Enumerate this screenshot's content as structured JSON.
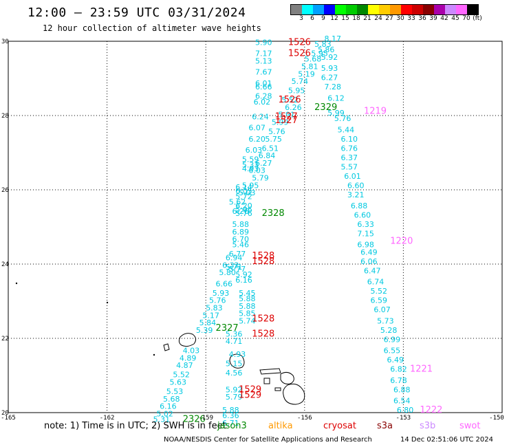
{
  "header": {
    "title": "12:00 — 23:59 UTC 03/31/2024",
    "subtitle": "12 hour collection of altimeter wave heights"
  },
  "colorbar": {
    "colors": [
      "#808080",
      "#00ffff",
      "#00a0ff",
      "#0000ff",
      "#00ff00",
      "#00cc00",
      "#008800",
      "#ffff00",
      "#ffcc00",
      "#ff9900",
      "#ff0000",
      "#cc0000",
      "#880000",
      "#aa00aa",
      "#cc88ff",
      "#ff66ff",
      "#000000"
    ],
    "labels": [
      "3",
      "6",
      "9",
      "12",
      "15",
      "18",
      "21",
      "24",
      "27",
      "30",
      "33",
      "36",
      "39",
      "42",
      "45",
      "70",
      "(ft)"
    ]
  },
  "axes": {
    "x_ticks": [
      "-165",
      "-162",
      "-159",
      "-156",
      "-153",
      "-150"
    ],
    "y_ticks": [
      "30",
      "28",
      "26",
      "24",
      "22",
      "20"
    ]
  },
  "tracks": {
    "swh_color": "#00c8e0",
    "swh_values": [
      {
        "lon": -157.5,
        "lat": 29.9,
        "v": "5.90"
      },
      {
        "lon": -157.5,
        "lat": 29.6,
        "v": "7.17"
      },
      {
        "lon": -157.5,
        "lat": 29.4,
        "v": "5.13"
      },
      {
        "lon": -157.5,
        "lat": 29.1,
        "v": "7.67"
      },
      {
        "lon": -157.5,
        "lat": 28.8,
        "v": "6.01"
      },
      {
        "lon": -157.5,
        "lat": 28.7,
        "v": "6.66"
      },
      {
        "lon": -157.5,
        "lat": 28.45,
        "v": "6.28"
      },
      {
        "lon": -157.55,
        "lat": 28.3,
        "v": "6.02"
      },
      {
        "lon": -157.6,
        "lat": 27.9,
        "v": "6.24"
      },
      {
        "lon": -157.7,
        "lat": 27.6,
        "v": "6.07"
      },
      {
        "lon": -157.7,
        "lat": 27.3,
        "v": "6.20"
      },
      {
        "lon": -157.8,
        "lat": 27.0,
        "v": "6.03"
      },
      {
        "lon": -157.9,
        "lat": 26.75,
        "v": "5.59"
      },
      {
        "lon": -157.9,
        "lat": 26.6,
        "v": "5.33"
      },
      {
        "lon": -157.9,
        "lat": 26.5,
        "v": "4.93"
      },
      {
        "lon": -158.1,
        "lat": 26.0,
        "v": "6.14"
      },
      {
        "lon": -158.1,
        "lat": 25.9,
        "v": "6.05"
      },
      {
        "lon": -158.1,
        "lat": 25.5,
        "v": "6.20"
      },
      {
        "lon": -158.1,
        "lat": 25.4,
        "v": "5.96"
      },
      {
        "lon": -158.1,
        "lat": 25.3,
        "v": "5.76"
      },
      {
        "lon": -158.2,
        "lat": 25.0,
        "v": "5.88"
      },
      {
        "lon": -158.2,
        "lat": 24.8,
        "v": "6.89"
      },
      {
        "lon": -158.2,
        "lat": 24.6,
        "v": "6.70"
      },
      {
        "lon": -158.2,
        "lat": 24.45,
        "v": "5.46"
      },
      {
        "lon": -158.3,
        "lat": 24.2,
        "v": "6.77"
      },
      {
        "lon": -158.4,
        "lat": 24.1,
        "v": "6.94"
      },
      {
        "lon": -158.5,
        "lat": 23.9,
        "v": "6.32"
      },
      {
        "lon": -158.6,
        "lat": 23.7,
        "v": "5.80"
      },
      {
        "lon": -158.7,
        "lat": 23.4,
        "v": "6.66"
      },
      {
        "lon": -158.8,
        "lat": 23.15,
        "v": "5.93"
      },
      {
        "lon": -158.9,
        "lat": 22.95,
        "v": "5.76"
      },
      {
        "lon": -159.0,
        "lat": 22.75,
        "v": "5.83"
      },
      {
        "lon": -159.1,
        "lat": 22.55,
        "v": "5.17"
      },
      {
        "lon": -159.2,
        "lat": 22.35,
        "v": "5.84"
      },
      {
        "lon": -159.3,
        "lat": 22.15,
        "v": "5.39"
      },
      {
        "lon": -159.7,
        "lat": 21.6,
        "v": "4.03"
      },
      {
        "lon": -159.8,
        "lat": 21.4,
        "v": "4.89"
      },
      {
        "lon": -159.9,
        "lat": 21.2,
        "v": "4.87"
      },
      {
        "lon": -160.0,
        "lat": 20.95,
        "v": "5.52"
      },
      {
        "lon": -160.1,
        "lat": 20.75,
        "v": "5.63"
      },
      {
        "lon": -160.2,
        "lat": 20.5,
        "v": "5.53"
      },
      {
        "lon": -160.3,
        "lat": 20.3,
        "v": "5.68"
      },
      {
        "lon": -160.4,
        "lat": 20.1,
        "v": "6.16"
      },
      {
        "lon": -160.5,
        "lat": 19.9,
        "v": "5.02"
      },
      {
        "lon": -160.6,
        "lat": 19.75,
        "v": "5.31"
      },
      {
        "lon": -158.4,
        "lat": 23.85,
        "v": "5.71"
      },
      {
        "lon": -158.3,
        "lat": 23.8,
        "v": "5.77"
      },
      {
        "lon": -158.1,
        "lat": 23.65,
        "v": "5.92"
      },
      {
        "lon": -158.1,
        "lat": 23.5,
        "v": "6.16"
      },
      {
        "lon": -158.0,
        "lat": 23.15,
        "v": "5.45"
      },
      {
        "lon": -158.0,
        "lat": 23.0,
        "v": "5.88"
      },
      {
        "lon": -158.0,
        "lat": 22.8,
        "v": "5.88"
      },
      {
        "lon": -158.0,
        "lat": 22.6,
        "v": "5.85"
      },
      {
        "lon": -158.0,
        "lat": 22.4,
        "v": "5.74"
      },
      {
        "lon": -158.4,
        "lat": 22.05,
        "v": "5.36"
      },
      {
        "lon": -158.4,
        "lat": 21.85,
        "v": "4.71"
      },
      {
        "lon": -158.3,
        "lat": 21.5,
        "v": "4.93"
      },
      {
        "lon": -158.4,
        "lat": 21.25,
        "v": "5.15"
      },
      {
        "lon": -158.4,
        "lat": 21.0,
        "v": "4.56"
      },
      {
        "lon": -158.4,
        "lat": 20.55,
        "v": "5.92"
      },
      {
        "lon": -158.4,
        "lat": 20.35,
        "v": "5.79"
      },
      {
        "lon": -158.5,
        "lat": 20.0,
        "v": "5.88"
      },
      {
        "lon": -158.5,
        "lat": 19.85,
        "v": "6.36"
      },
      {
        "lon": -158.5,
        "lat": 19.65,
        "v": "6.71"
      },
      {
        "lon": -155.4,
        "lat": 30.0,
        "v": "8.17"
      },
      {
        "lon": -155.7,
        "lat": 29.85,
        "v": "5.83"
      },
      {
        "lon": -155.6,
        "lat": 29.7,
        "v": "5.86"
      },
      {
        "lon": -155.8,
        "lat": 29.6,
        "v": "5.95"
      },
      {
        "lon": -155.5,
        "lat": 29.5,
        "v": "5.92"
      },
      {
        "lon": -156.0,
        "lat": 29.45,
        "v": "5.68"
      },
      {
        "lon": -156.1,
        "lat": 29.25,
        "v": "5.81"
      },
      {
        "lon": -155.5,
        "lat": 29.2,
        "v": "5.93"
      },
      {
        "lon": -156.2,
        "lat": 29.05,
        "v": "5.19"
      },
      {
        "lon": -155.5,
        "lat": 28.95,
        "v": "6.27"
      },
      {
        "lon": -156.4,
        "lat": 28.85,
        "v": "5.74"
      },
      {
        "lon": -155.4,
        "lat": 28.7,
        "v": "7.28"
      },
      {
        "lon": -156.5,
        "lat": 28.6,
        "v": "5.95"
      },
      {
        "lon": -155.3,
        "lat": 28.4,
        "v": "6.12"
      },
      {
        "lon": -156.7,
        "lat": 28.35,
        "v": "5.52"
      },
      {
        "lon": -156.6,
        "lat": 28.15,
        "v": "6.26"
      },
      {
        "lon": -156.8,
        "lat": 27.95,
        "v": "5.91"
      },
      {
        "lon": -155.3,
        "lat": 28.0,
        "v": "5.99"
      },
      {
        "lon": -157.0,
        "lat": 27.75,
        "v": "5.99"
      },
      {
        "lon": -155.1,
        "lat": 27.85,
        "v": "5.76"
      },
      {
        "lon": -157.1,
        "lat": 27.5,
        "v": "5.76"
      },
      {
        "lon": -155.0,
        "lat": 27.55,
        "v": "5.44"
      },
      {
        "lon": -157.2,
        "lat": 27.3,
        "v": "5.75"
      },
      {
        "lon": -154.9,
        "lat": 27.3,
        "v": "6.10"
      },
      {
        "lon": -157.3,
        "lat": 27.05,
        "v": "6.51"
      },
      {
        "lon": -154.9,
        "lat": 27.05,
        "v": "6.76"
      },
      {
        "lon": -157.4,
        "lat": 26.85,
        "v": "6.84"
      },
      {
        "lon": -154.9,
        "lat": 26.8,
        "v": "6.37"
      },
      {
        "lon": -157.5,
        "lat": 26.65,
        "v": "6.27"
      },
      {
        "lon": -154.9,
        "lat": 26.55,
        "v": "5.57"
      },
      {
        "lon": -157.7,
        "lat": 26.45,
        "v": "6.03"
      },
      {
        "lon": -154.8,
        "lat": 26.3,
        "v": "6.01"
      },
      {
        "lon": -157.6,
        "lat": 26.25,
        "v": "5.79"
      },
      {
        "lon": -154.7,
        "lat": 26.05,
        "v": "6.60"
      },
      {
        "lon": -157.9,
        "lat": 26.05,
        "v": "5.95"
      },
      {
        "lon": -154.7,
        "lat": 25.8,
        "v": "3.21"
      },
      {
        "lon": -158.0,
        "lat": 25.85,
        "v": "5.03"
      },
      {
        "lon": -154.6,
        "lat": 25.5,
        "v": "6.88"
      },
      {
        "lon": -158.1,
        "lat": 25.75,
        "v": "5.72"
      },
      {
        "lon": -154.5,
        "lat": 25.25,
        "v": "6.60"
      },
      {
        "lon": -158.3,
        "lat": 25.6,
        "v": "5.62"
      },
      {
        "lon": -154.4,
        "lat": 25.0,
        "v": "6.33"
      },
      {
        "lon": -158.2,
        "lat": 25.35,
        "v": "6.26"
      },
      {
        "lon": -154.4,
        "lat": 24.75,
        "v": "7.15"
      },
      {
        "lon": -154.4,
        "lat": 24.45,
        "v": "6.98"
      },
      {
        "lon": -154.3,
        "lat": 24.25,
        "v": "6.49"
      },
      {
        "lon": -154.3,
        "lat": 24.0,
        "v": "6.06"
      },
      {
        "lon": -154.2,
        "lat": 23.75,
        "v": "6.47"
      },
      {
        "lon": -154.1,
        "lat": 23.45,
        "v": "6.74"
      },
      {
        "lon": -154.0,
        "lat": 23.2,
        "v": "5.52"
      },
      {
        "lon": -154.0,
        "lat": 22.95,
        "v": "6.59"
      },
      {
        "lon": -153.9,
        "lat": 22.7,
        "v": "6.07"
      },
      {
        "lon": -153.8,
        "lat": 22.4,
        "v": "5.73"
      },
      {
        "lon": -153.7,
        "lat": 22.15,
        "v": "5.28"
      },
      {
        "lon": -153.6,
        "lat": 21.9,
        "v": "6.99"
      },
      {
        "lon": -153.6,
        "lat": 21.6,
        "v": "6.55"
      },
      {
        "lon": -153.5,
        "lat": 21.35,
        "v": "6.49"
      },
      {
        "lon": -153.4,
        "lat": 21.1,
        "v": "6.82"
      },
      {
        "lon": -153.4,
        "lat": 20.8,
        "v": "6.78"
      },
      {
        "lon": -153.3,
        "lat": 20.55,
        "v": "6.88"
      },
      {
        "lon": -153.3,
        "lat": 20.25,
        "v": "6.54"
      },
      {
        "lon": -153.2,
        "lat": 20.0,
        "v": "6.80"
      }
    ],
    "time_labels": [
      {
        "lon": -156.5,
        "lat": 29.9,
        "t": "1526",
        "color": "#dd0000"
      },
      {
        "lon": -156.5,
        "lat": 29.6,
        "t": "1526",
        "color": "#dd0000"
      },
      {
        "lon": -156.8,
        "lat": 28.35,
        "t": "1526",
        "color": "#dd0000"
      },
      {
        "lon": -156.9,
        "lat": 27.9,
        "t": "1527",
        "color": "#dd0000"
      },
      {
        "lon": -156.9,
        "lat": 27.8,
        "t": "1527",
        "color": "#dd0000"
      },
      {
        "lon": -155.7,
        "lat": 28.15,
        "t": "2329",
        "color": "#008800"
      },
      {
        "lon": -154.2,
        "lat": 28.05,
        "t": "1219",
        "color": "#ff66ff"
      },
      {
        "lon": -157.3,
        "lat": 25.3,
        "t": "2328",
        "color": "#008800"
      },
      {
        "lon": -153.4,
        "lat": 24.55,
        "t": "1220",
        "color": "#ff66ff"
      },
      {
        "lon": -157.6,
        "lat": 24.15,
        "t": "1528",
        "color": "#dd0000"
      },
      {
        "lon": -157.6,
        "lat": 24.0,
        "t": "1528",
        "color": "#dd0000"
      },
      {
        "lon": -157.6,
        "lat": 22.45,
        "t": "1528",
        "color": "#dd0000"
      },
      {
        "lon": -158.7,
        "lat": 22.2,
        "t": "2327",
        "color": "#008800"
      },
      {
        "lon": -157.6,
        "lat": 22.05,
        "t": "1528",
        "color": "#dd0000"
      },
      {
        "lon": -152.8,
        "lat": 21.1,
        "t": "1221",
        "color": "#ff66ff"
      },
      {
        "lon": -158.0,
        "lat": 20.55,
        "t": "1529",
        "color": "#dd0000"
      },
      {
        "lon": -158.0,
        "lat": 20.4,
        "t": "1529",
        "color": "#dd0000"
      },
      {
        "lon": -152.5,
        "lat": 20.0,
        "t": "1222",
        "color": "#ff66ff"
      },
      {
        "lon": -159.7,
        "lat": 19.75,
        "t": "2326",
        "color": "#008800"
      }
    ]
  },
  "legend": {
    "note": "note: 1) Time is in UTC; 2) SWH is in feet",
    "satellites": [
      {
        "name": "jason3",
        "color": "#008800"
      },
      {
        "name": "altika",
        "color": "#ff9900"
      },
      {
        "name": "cryosat",
        "color": "#dd0000"
      },
      {
        "name": "s3a",
        "color": "#880000"
      },
      {
        "name": "s3b",
        "color": "#cc88ff"
      },
      {
        "name": "swot",
        "color": "#ff66ff"
      }
    ]
  },
  "footer": {
    "credit": "NOAA/NESDIS Center for Satellite Applications and Research",
    "timestamp": "14 Dec 02:51:06 UTC 2024"
  }
}
